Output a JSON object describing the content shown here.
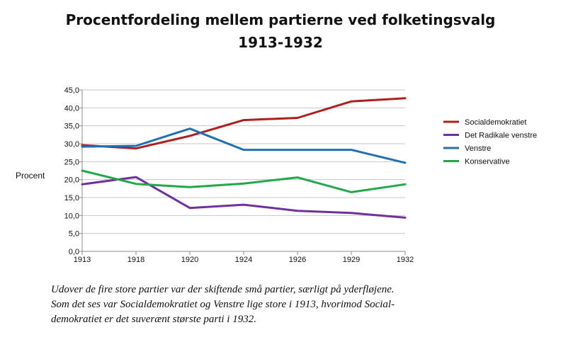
{
  "chart_data": {
    "type": "line",
    "title_line1": "Procentfordeling mellem partierne ved folketingsvalg",
    "title_line2": "1913-1932",
    "xlabel": "",
    "ylabel": "Procent",
    "categories": [
      "1913",
      "1918",
      "1920",
      "1924",
      "1926",
      "1929",
      "1932"
    ],
    "y_ticks": [
      "0,0",
      "5,0",
      "10,0",
      "15,0",
      "20,0",
      "25,0",
      "30,0",
      "35,0",
      "40,0",
      "45,0"
    ],
    "ylim": [
      0,
      45
    ],
    "grid": "horizontal",
    "legend_position": "right",
    "series": [
      {
        "name": "Socialdemokratiet",
        "color": "#b01e1e",
        "values": [
          29.6,
          28.7,
          32.2,
          36.6,
          37.2,
          41.8,
          42.7
        ]
      },
      {
        "name": "Det Radikale venstre",
        "color": "#7030a0",
        "values": [
          18.7,
          20.7,
          12.1,
          13.0,
          11.3,
          10.7,
          9.4
        ]
      },
      {
        "name": "Venstre",
        "color": "#1f6fb5",
        "values": [
          29.2,
          29.4,
          34.2,
          28.3,
          28.3,
          28.3,
          24.7
        ]
      },
      {
        "name": "Konservative",
        "color": "#22a84a",
        "values": [
          22.5,
          18.8,
          17.9,
          18.9,
          20.6,
          16.5,
          18.7
        ]
      }
    ]
  },
  "caption": {
    "line1": "Udover de fire store partier var der skiftende små partier, særligt på yderfløjene.",
    "line2": "Som det ses var Socialdemokratiet og Venstre lige store i 1913, hvorimod Social-",
    "line3": "demokratiet er det suverænt største parti i 1932."
  }
}
